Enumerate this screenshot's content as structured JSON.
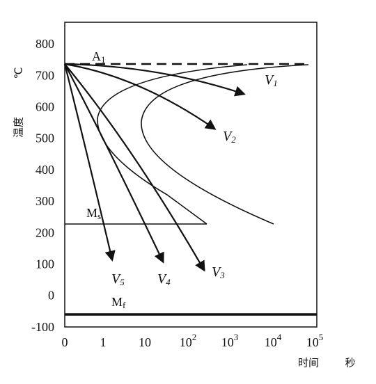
{
  "y_axis": {
    "label": "温度",
    "unit": "℃",
    "ticks": [
      "800",
      "700",
      "600",
      "500",
      "400",
      "300",
      "200",
      "100",
      "0",
      "-100"
    ]
  },
  "x_axis": {
    "label": "时间",
    "unit": "秒",
    "ticks": [
      {
        "base": "0"
      },
      {
        "base": "1"
      },
      {
        "base": "10"
      },
      {
        "base": "10",
        "exp": "2"
      },
      {
        "base": "10",
        "exp": "3"
      },
      {
        "base": "10",
        "exp": "4"
      },
      {
        "base": "10",
        "exp": "5"
      }
    ]
  },
  "lines": {
    "a1": {
      "symbol": "A",
      "subscript": "1"
    },
    "ms": {
      "symbol": "M",
      "subscript": "s"
    },
    "mf": {
      "symbol": "M",
      "subscript": "f"
    }
  },
  "curves": [
    {
      "symbol": "V",
      "subscript": "1"
    },
    {
      "symbol": "V",
      "subscript": "2"
    },
    {
      "symbol": "V",
      "subscript": "3"
    },
    {
      "symbol": "V",
      "subscript": "4"
    },
    {
      "symbol": "V",
      "subscript": "5"
    }
  ]
}
